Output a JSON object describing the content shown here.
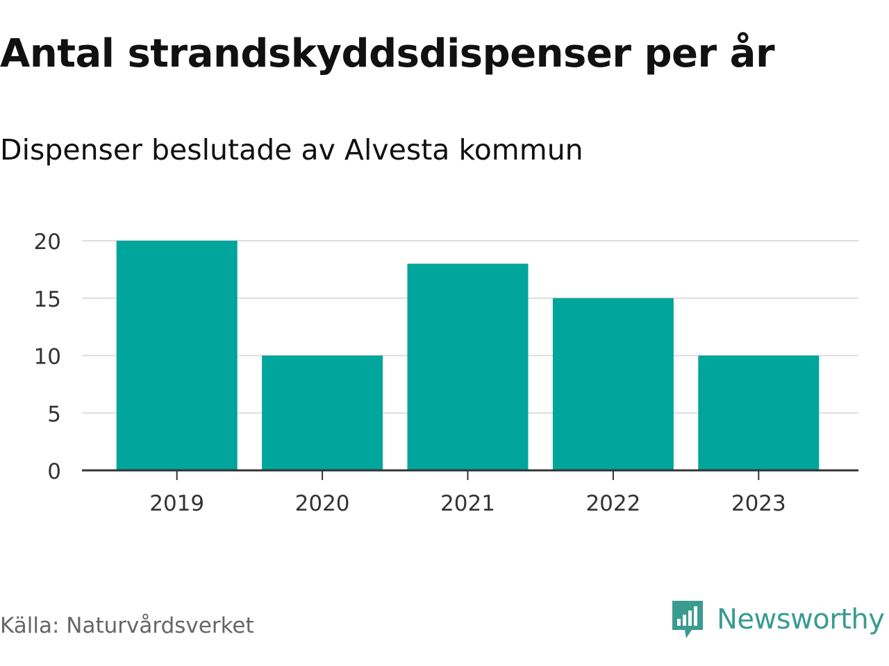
{
  "header": {
    "title": "Antal strandskyddsdispenser per år",
    "subtitle": "Dispenser beslutade av Alvesta kommun"
  },
  "footer": {
    "source": "Källa: Naturvårdsverket",
    "brand": "Newsworthy",
    "brand_icon": "newsworthy-logo-icon"
  },
  "chart_data": {
    "type": "bar",
    "categories": [
      "2019",
      "2020",
      "2021",
      "2022",
      "2023"
    ],
    "values": [
      20,
      10,
      18,
      15,
      10
    ],
    "ylim": [
      0,
      20
    ],
    "yticks": [
      0,
      5,
      10,
      15,
      20
    ],
    "grid": true,
    "bar_color": "#00a59b",
    "grid_color": "#dddddd",
    "axis_color": "#333333"
  }
}
